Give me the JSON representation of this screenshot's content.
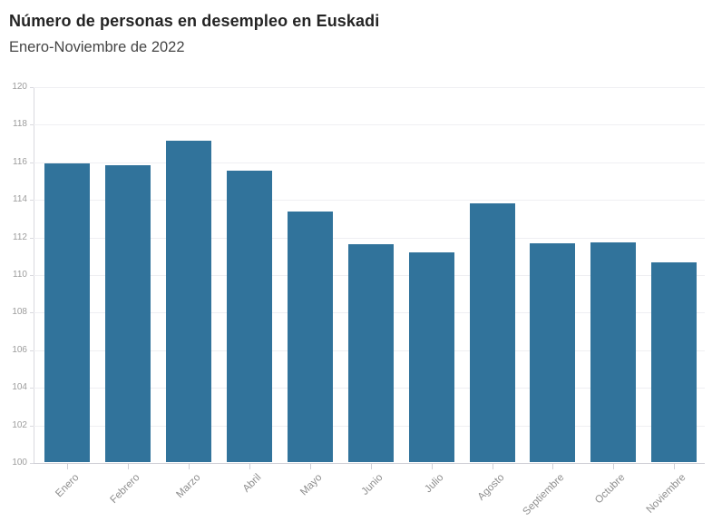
{
  "header": {
    "title": "Número de personas en desempleo en Euskadi",
    "subtitle": "Enero-Noviembre de 2022"
  },
  "chart_data": {
    "type": "bar",
    "title": "Número de personas en desempleo en Euskadi",
    "subtitle": "Enero-Noviembre de 2022",
    "categories": [
      "Enero",
      "Febrero",
      "Marzo",
      "Abril",
      "Mayo",
      "Junio",
      "Julio",
      "Agosto",
      "Septiembre",
      "Octubre",
      "Noviembre"
    ],
    "values": [
      115.95,
      115.85,
      117.15,
      115.55,
      113.4,
      111.65,
      111.2,
      113.8,
      111.7,
      111.75,
      110.7
    ],
    "xlabel": "",
    "ylabel": "",
    "ylim": [
      100,
      120
    ],
    "yticks": [
      100,
      102,
      104,
      106,
      108,
      110,
      112,
      114,
      116,
      118,
      120
    ],
    "grid": "horizontal",
    "legend": false,
    "bar_color": "#31739b",
    "x_label_rotation_deg": -45
  }
}
